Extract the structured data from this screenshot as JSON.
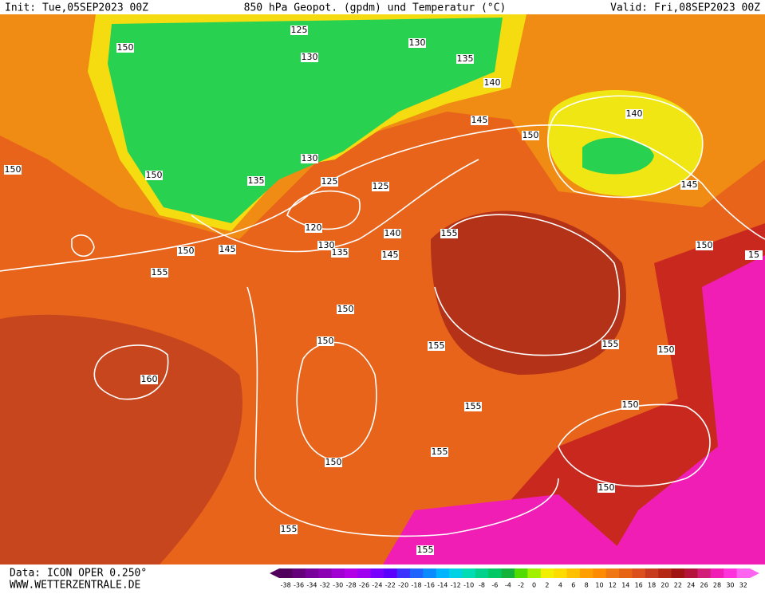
{
  "header": {
    "init": "Init: Tue,05SEP2023 00Z",
    "title": "850 hPa Geopot. (gpdm) und Temperatur (°C)",
    "valid": "Valid: Fri,08SEP2023 00Z"
  },
  "footer": {
    "data": "Data: ICON OPER 0.250°",
    "website": "WWW.WETTERZENTRALE.DE"
  },
  "colorbar": {
    "labels": [
      -38,
      -36,
      -34,
      -32,
      -30,
      -28,
      -26,
      -24,
      -22,
      -20,
      -18,
      -16,
      -14,
      -12,
      -10,
      -8,
      -6,
      -4,
      -2,
      0,
      2,
      4,
      6,
      8,
      10,
      12,
      14,
      16,
      18,
      20,
      22,
      24,
      26,
      28,
      30,
      32
    ],
    "colors": [
      "#50005a",
      "#64007a",
      "#78009a",
      "#8c00b4",
      "#a000d2",
      "#b400e6",
      "#a000f0",
      "#7800ff",
      "#5a00ff",
      "#3c32ff",
      "#1e64ff",
      "#0a8cff",
      "#00b4ff",
      "#00d2e6",
      "#00dcb4",
      "#00d28c",
      "#00c864",
      "#14b43c",
      "#50dc00",
      "#a0f000",
      "#f0f000",
      "#ffdc00",
      "#ffc000",
      "#ffa000",
      "#ff8c00",
      "#f07814",
      "#e66414",
      "#dc501e",
      "#c83c1e",
      "#b42814",
      "#a01414",
      "#b4143c",
      "#d21e78",
      "#f01eb4",
      "#ff32dc",
      "#ff64f0"
    ]
  },
  "contour_labels": [
    "125",
    "130",
    "130",
    "135",
    "140",
    "150",
    "145",
    "150",
    "140",
    "145",
    "150",
    "150",
    "135",
    "130",
    "125",
    "125",
    "120",
    "130",
    "135",
    "140",
    "145",
    "155",
    "150",
    "145",
    "155",
    "150",
    "15",
    "150",
    "150",
    "155",
    "155",
    "150",
    "160",
    "155",
    "150",
    "150",
    "155",
    "150",
    "155",
    "155"
  ]
}
